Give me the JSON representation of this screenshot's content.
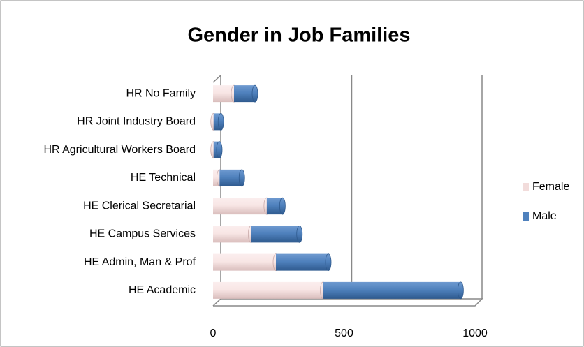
{
  "chart_data": {
    "type": "bar",
    "orientation": "horizontal",
    "stacked": true,
    "title": "Gender in Job Families",
    "categories": [
      "HR No Family",
      "HR Joint Industry Board",
      "HR Agricultural Workers Board",
      "HE Technical",
      "HE Clerical Secretarial",
      "HE Campus Services",
      "HE Admin, Man & Prof",
      "HE Academic"
    ],
    "series": [
      {
        "name": "Female",
        "color": "#f2dcdb",
        "values": [
          80,
          2,
          2,
          25,
          205,
          145,
          240,
          420
        ]
      },
      {
        "name": "Male",
        "color": "#4f81bd",
        "values": [
          80,
          28,
          22,
          85,
          60,
          185,
          200,
          525
        ]
      }
    ],
    "xlim": [
      0,
      1000
    ],
    "xticks": [
      0,
      500,
      1000
    ],
    "grid": true,
    "legend": "right"
  }
}
